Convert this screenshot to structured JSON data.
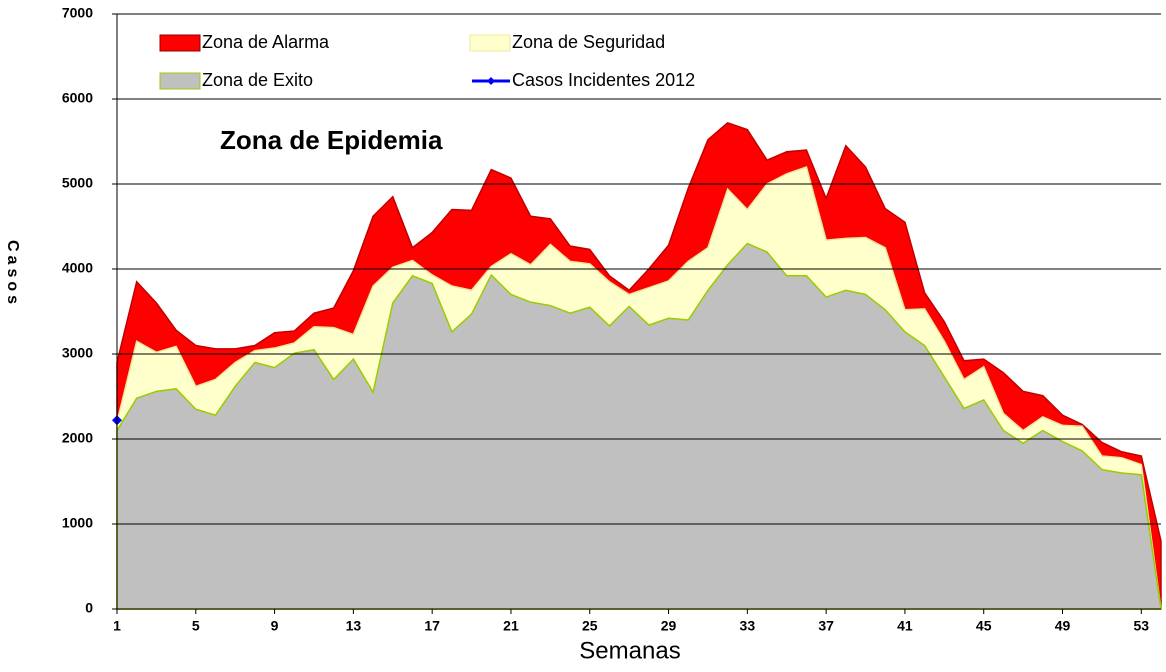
{
  "chart_data": {
    "type": "area",
    "annotation": "Zona de Epidemia",
    "x_label": "Semanas",
    "y_label": "Casos",
    "x": [
      1,
      2,
      3,
      4,
      5,
      6,
      7,
      8,
      9,
      10,
      11,
      12,
      13,
      14,
      15,
      16,
      17,
      18,
      19,
      20,
      21,
      22,
      23,
      24,
      25,
      26,
      27,
      28,
      29,
      30,
      31,
      32,
      33,
      34,
      35,
      36,
      37,
      38,
      39,
      40,
      41,
      42,
      43,
      44,
      45,
      46,
      47,
      48,
      49,
      50,
      51,
      52,
      53,
      54
    ],
    "xlim": [
      1,
      54
    ],
    "xticks": [
      1,
      5,
      9,
      13,
      17,
      21,
      25,
      29,
      33,
      37,
      41,
      45,
      49,
      53
    ],
    "ylim": [
      0,
      7000
    ],
    "yticks": [
      0,
      1000,
      2000,
      3000,
      4000,
      5000,
      6000,
      7000
    ],
    "grid": true,
    "series": [
      {
        "name": "Zona de Alarma",
        "color": "#ff0000",
        "values": [
          2900,
          3850,
          3600,
          3280,
          3100,
          3060,
          3060,
          3100,
          3250,
          3270,
          3480,
          3540,
          3980,
          4620,
          4850,
          4250,
          4430,
          4700,
          4690,
          5170,
          5070,
          4620,
          4590,
          4270,
          4230,
          3920,
          3750,
          4000,
          4280,
          4950,
          5520,
          5720,
          5640,
          5280,
          5380,
          5400,
          4830,
          5450,
          5200,
          4710,
          4550,
          3720,
          3380,
          2920,
          2940,
          2780,
          2560,
          2510,
          2280,
          2170,
          1960,
          1850,
          1800,
          800
        ]
      },
      {
        "name": "Zona de Seguridad",
        "color": "#ffffcc",
        "values": [
          2200,
          3150,
          3020,
          3090,
          2620,
          2700,
          2900,
          3040,
          3070,
          3130,
          3320,
          3310,
          3230,
          3800,
          4020,
          4100,
          3930,
          3800,
          3750,
          4030,
          4180,
          4050,
          4290,
          4090,
          4060,
          3850,
          3700,
          3780,
          3860,
          4090,
          4250,
          4940,
          4700,
          5000,
          5120,
          5200,
          4340,
          4360,
          4370,
          4250,
          3520,
          3530,
          3150,
          2700,
          2850,
          2300,
          2100,
          2260,
          2160,
          2150,
          1800,
          1780,
          1700,
          0
        ]
      },
      {
        "name": "Zona de Exito",
        "color": "#c0c0c0",
        "values": [
          2100,
          2480,
          2560,
          2590,
          2350,
          2280,
          2620,
          2900,
          2840,
          3010,
          3050,
          2700,
          2940,
          2550,
          3600,
          3920,
          3830,
          3260,
          3470,
          3930,
          3700,
          3610,
          3570,
          3480,
          3550,
          3330,
          3560,
          3340,
          3420,
          3400,
          3750,
          4050,
          4300,
          4200,
          3920,
          3920,
          3670,
          3750,
          3700,
          3520,
          3260,
          3100,
          2730,
          2360,
          2460,
          2100,
          1950,
          2100,
          1970,
          1860,
          1640,
          1600,
          1580,
          0
        ]
      },
      {
        "name": "Casos Incidentes 2012",
        "color": "#0000ff",
        "values": [
          2220,
          null,
          null,
          null,
          null,
          null,
          null,
          null,
          null,
          null,
          null,
          null,
          null,
          null,
          null,
          null,
          null,
          null,
          null,
          null,
          null,
          null,
          null,
          null,
          null,
          null,
          null,
          null,
          null,
          null,
          null,
          null,
          null,
          null,
          null,
          null,
          null,
          null,
          null,
          null,
          null,
          null,
          null,
          null,
          null,
          null,
          null,
          null,
          null,
          null,
          null,
          null,
          null,
          null
        ]
      }
    ]
  }
}
